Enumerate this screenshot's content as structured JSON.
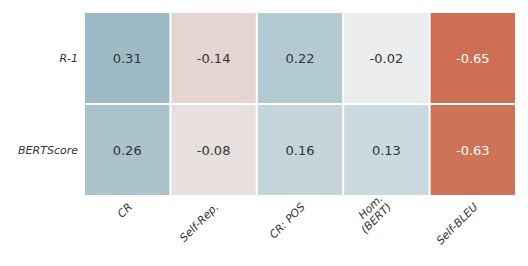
{
  "chart_data": {
    "type": "heatmap",
    "categories": [
      "CR",
      "Self-Rep.",
      "CR: POS",
      "Hom.\n(BERT)",
      "Self-BLEU"
    ],
    "rows": [
      "R-1",
      "BERTScore"
    ],
    "values": [
      [
        0.31,
        -0.14,
        0.22,
        -0.02,
        -0.65
      ],
      [
        0.26,
        -0.08,
        0.16,
        0.13,
        -0.63
      ]
    ],
    "zlim": [
      -0.75,
      0.75
    ],
    "data_labels": true
  }
}
